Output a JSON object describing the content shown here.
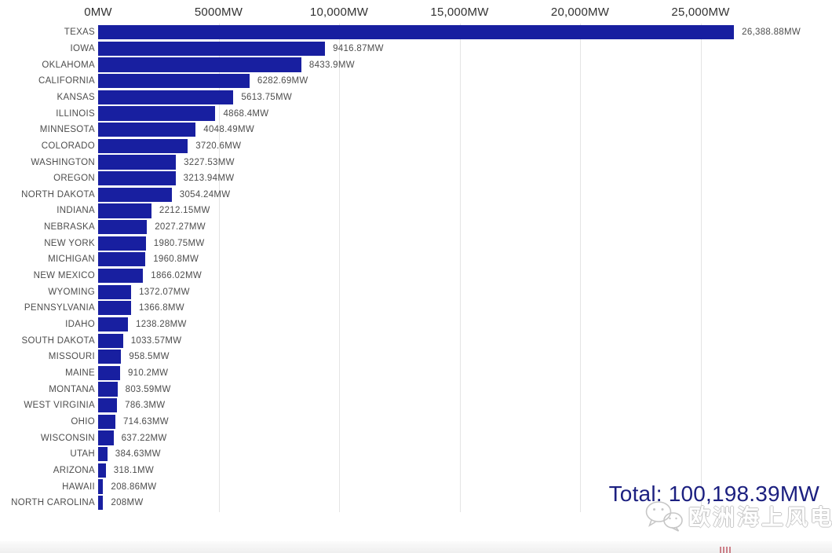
{
  "chart_data": {
    "type": "bar",
    "orientation": "horizontal",
    "title": "",
    "unit": "MW",
    "x_axis": {
      "position": "top",
      "ticks": [
        "0MW",
        "5000MW",
        "10,000MW",
        "15,000MW",
        "20,000MW",
        "25,000MW"
      ],
      "tick_values": [
        0,
        5000,
        10000,
        15000,
        20000,
        25000
      ],
      "range": [
        0,
        30000
      ],
      "grid": true
    },
    "categories": [
      "TEXAS",
      "IOWA",
      "OKLAHOMA",
      "CALIFORNIA",
      "KANSAS",
      "ILLINOIS",
      "MINNESOTA",
      "COLORADO",
      "WASHINGTON",
      "OREGON",
      "NORTH DAKOTA",
      "INDIANA",
      "NEBRASKA",
      "NEW YORK",
      "MICHIGAN",
      "NEW MEXICO",
      "WYOMING",
      "PENNSYLVANIA",
      "IDAHO",
      "SOUTH DAKOTA",
      "MISSOURI",
      "MAINE",
      "MONTANA",
      "WEST VIRGINIA",
      "OHIO",
      "WISCONSIN",
      "UTAH",
      "ARIZONA",
      "HAWAII",
      "NORTH CAROLINA"
    ],
    "values": [
      26388.88,
      9416.87,
      8433.9,
      6282.69,
      5613.75,
      4868.4,
      4048.49,
      3720.6,
      3227.53,
      3213.94,
      3054.24,
      2212.15,
      2027.27,
      1980.75,
      1960.8,
      1866.02,
      1372.07,
      1366.8,
      1238.28,
      1033.57,
      958.5,
      910.2,
      803.59,
      786.3,
      714.63,
      637.22,
      384.63,
      318.1,
      208.86,
      208
    ],
    "value_labels": [
      "26,388.88MW",
      "9416.87MW",
      "8433.9MW",
      "6282.69MW",
      "5613.75MW",
      "4868.4MW",
      "4048.49MW",
      "3720.6MW",
      "3227.53MW",
      "3213.94MW",
      "3054.24MW",
      "2212.15MW",
      "2027.27MW",
      "1980.75MW",
      "1960.8MW",
      "1866.02MW",
      "1372.07MW",
      "1366.8MW",
      "1238.28MW",
      "1033.57MW",
      "958.5MW",
      "910.2MW",
      "803.59MW",
      "786.3MW",
      "714.63MW",
      "637.22MW",
      "384.63MW",
      "318.1MW",
      "208.86MW",
      "208MW"
    ],
    "legend": null,
    "colors": {
      "bar": "#181fa0",
      "grid": "#e4e4e4",
      "axis_text": "#333333",
      "label_text": "#4d4d4d"
    }
  },
  "total": {
    "label": "Total: 100,198.39MW",
    "color": "#1c2080"
  },
  "watermark": {
    "icon": "wechat-icon",
    "text": "欧洲海上风电",
    "color": "#bdbdbd"
  }
}
